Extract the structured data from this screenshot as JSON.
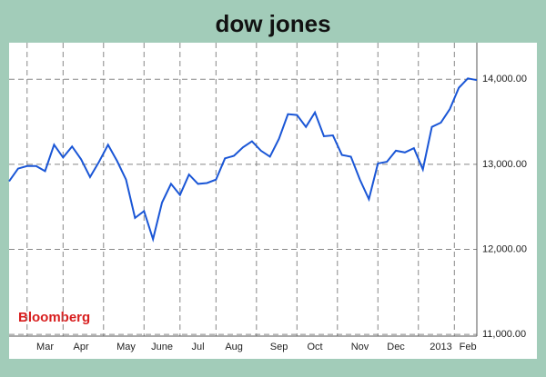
{
  "chart_data": {
    "type": "line",
    "title": "dow jones",
    "source": "Bloomberg",
    "categories": [
      null,
      null,
      null,
      null,
      "Mar",
      null,
      null,
      null,
      "Apr",
      null,
      null,
      null,
      null,
      "May",
      null,
      null,
      null,
      "June",
      null,
      null,
      null,
      "Jul",
      null,
      null,
      null,
      "Aug",
      null,
      null,
      null,
      null,
      "Sep",
      null,
      null,
      null,
      "Oct",
      null,
      null,
      null,
      null,
      "Nov",
      null,
      null,
      null,
      "Dec",
      null,
      null,
      null,
      null,
      "2013",
      null,
      null,
      "Feb",
      null
    ],
    "series": [
      {
        "name": "Dow Jones",
        "color": "#1a56d6",
        "values": [
          12800,
          12950,
          12980,
          12980,
          12920,
          13230,
          13080,
          13210,
          13060,
          12850,
          13030,
          13230,
          13040,
          12820,
          12370,
          12450,
          12120,
          12550,
          12770,
          12640,
          12880,
          12770,
          12780,
          12820,
          13070,
          13100,
          13200,
          13270,
          13160,
          13090,
          13300,
          13590,
          13580,
          13440,
          13610,
          13330,
          13340,
          13110,
          13090,
          12820,
          12590,
          13010,
          13030,
          13160,
          13140,
          13190,
          12940,
          13440,
          13490,
          13650,
          13900,
          14010,
          13990
        ]
      }
    ],
    "ylim": [
      10980,
      14430
    ],
    "yticks": [
      {
        "value": 11000,
        "label": "11,000.00"
      },
      {
        "value": 12000,
        "label": "12,000.00"
      },
      {
        "value": 13000,
        "label": "13,000.00"
      },
      {
        "value": 14000,
        "label": "14,000.00"
      }
    ],
    "grid": true
  }
}
